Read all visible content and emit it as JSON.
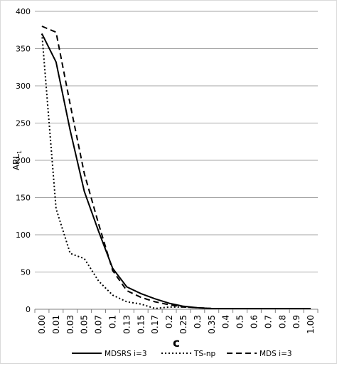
{
  "chart_data": {
    "type": "line",
    "categories": [
      "0.00",
      "0.01",
      "0.03",
      "0.05",
      "0.07",
      "0.1",
      "0.13",
      "0.15",
      "0.17",
      "0.2",
      "0.25",
      "0.3",
      "0.35",
      "0.4",
      "0.5",
      "0.6",
      "0.7",
      "0.8",
      "0.9",
      "1.00"
    ],
    "series": [
      {
        "name": "MDSRS i=3",
        "line_style": "solid",
        "color": "#000000",
        "values": [
          370,
          332,
          240,
          158,
          105,
          55,
          30,
          21,
          14,
          8,
          4,
          2,
          1,
          1,
          1,
          1,
          1,
          1,
          1,
          1
        ]
      },
      {
        "name": "TS-np",
        "line_style": "dotted",
        "color": "#000000",
        "values": [
          370,
          135,
          75,
          68,
          38,
          19,
          10,
          7,
          1,
          3,
          3,
          2,
          1,
          1,
          1,
          1,
          1,
          1,
          1,
          1
        ]
      },
      {
        "name": "MDS i=3",
        "line_style": "dashed",
        "color": "#000000",
        "values": [
          380,
          372,
          275,
          182,
          115,
          52,
          25,
          16,
          10,
          6,
          3,
          2,
          1,
          1,
          1,
          1,
          1,
          1,
          1,
          1
        ]
      }
    ],
    "xlabel": "c",
    "ylabel_main": "ARL",
    "ylabel_sub": "1",
    "ylim": [
      0,
      400
    ],
    "yticks": [
      "0",
      "50",
      "100",
      "150",
      "200",
      "250",
      "300",
      "350",
      "400"
    ],
    "grid": true,
    "legend_position": "bottom"
  }
}
